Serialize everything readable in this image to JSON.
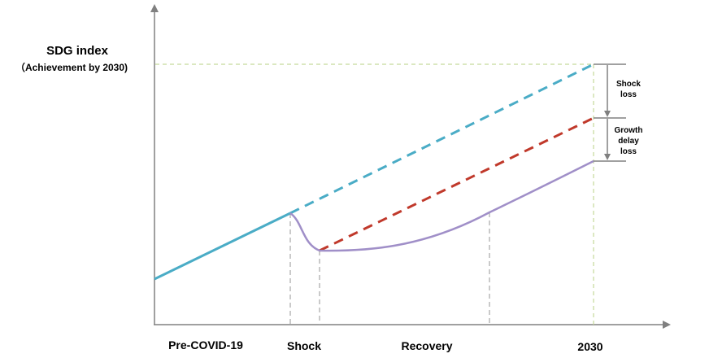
{
  "diagram": {
    "y_axis_title": "SDG index",
    "y_axis_subtitle": "（Achievement by 2030)",
    "x_labels": [
      "Pre-COVID-19",
      "Shock",
      "Recovery",
      "2030"
    ],
    "bracket_labels": {
      "shock_loss": [
        "Shock",
        "loss"
      ],
      "growth_delay_loss": [
        "Growth",
        "delay",
        "loss"
      ]
    },
    "colors": {
      "baseline": "#4aacc6",
      "delayed": "#c0392b",
      "actual": "#a08fc8",
      "guide_gray": "#a6a6a6",
      "guide_green": "#c5d99a",
      "axis": "#808080"
    }
  }
}
